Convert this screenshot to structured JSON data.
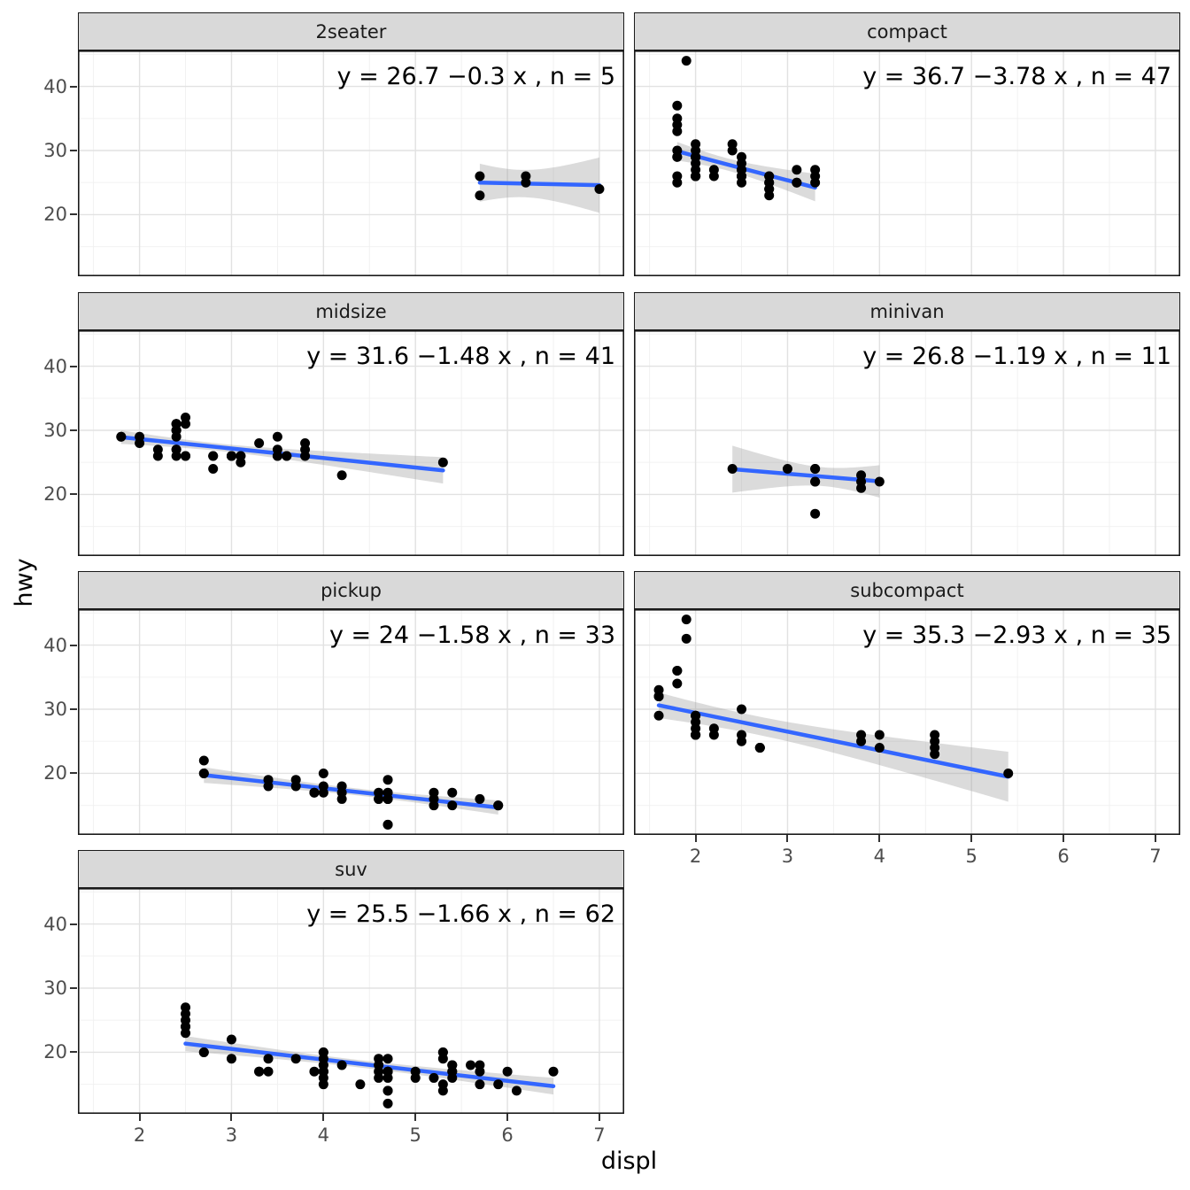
{
  "figure": {
    "background": "#ffffff"
  },
  "chart_data": {
    "type": "scatter",
    "title": "",
    "xlabel": "displ",
    "ylabel": "hwy",
    "facet_variable": "class",
    "legend": "none",
    "grid": "major+minor",
    "x_ticks": [
      2,
      3,
      4,
      5,
      6,
      7
    ],
    "y_ticks": [
      20,
      30,
      40
    ],
    "x_minor_ticks": [
      1.5,
      2.5,
      3.5,
      4.5,
      5.5,
      6.5
    ],
    "y_minor_ticks": [
      15,
      25,
      35,
      45
    ],
    "x_range": [
      1.33,
      7.27
    ],
    "y_range": [
      10.4,
      45.6
    ],
    "colors": {
      "point": "#000000",
      "smooth_line": "#3366FF",
      "confidence_band": "#999999",
      "strip_background": "#D9D9D9",
      "panel_border": "#1a1a1a",
      "grid_major": "#e2e2e2",
      "grid_minor": "#f0f0f0",
      "tick_text": "#4d4d4d"
    },
    "facets": [
      {
        "label": "2seater",
        "row": 0,
        "col": 0,
        "annotation": "y = 26.7 −0.3 x , n = 5",
        "fit": {
          "intercept": 26.7,
          "slope": -0.3,
          "n": 5
        },
        "points": [
          [
            5.7,
            26
          ],
          [
            5.7,
            23
          ],
          [
            6.2,
            26
          ],
          [
            6.2,
            25
          ],
          [
            7.0,
            24
          ]
        ]
      },
      {
        "label": "compact",
        "row": 0,
        "col": 1,
        "annotation": "y = 36.7 −3.78 x , n = 47",
        "fit": {
          "intercept": 36.7,
          "slope": -3.78,
          "n": 47
        },
        "points": [
          [
            1.8,
            29
          ],
          [
            1.8,
            29
          ],
          [
            2.0,
            31
          ],
          [
            2.0,
            30
          ],
          [
            2.8,
            26
          ],
          [
            2.8,
            26
          ],
          [
            3.1,
            27
          ],
          [
            1.8,
            26
          ],
          [
            1.8,
            25
          ],
          [
            2.0,
            28
          ],
          [
            2.0,
            27
          ],
          [
            2.8,
            25
          ],
          [
            2.8,
            25
          ],
          [
            3.1,
            25
          ],
          [
            3.1,
            25
          ],
          [
            2.2,
            26
          ],
          [
            2.2,
            27
          ],
          [
            2.5,
            26
          ],
          [
            2.5,
            27
          ],
          [
            2.5,
            26
          ],
          [
            2.5,
            25
          ],
          [
            2.5,
            27
          ],
          [
            2.5,
            26
          ],
          [
            1.8,
            30
          ],
          [
            1.8,
            33
          ],
          [
            1.8,
            34
          ],
          [
            1.8,
            35
          ],
          [
            1.8,
            37
          ],
          [
            2.0,
            29
          ],
          [
            2.0,
            26
          ],
          [
            2.0,
            29
          ],
          [
            2.0,
            26
          ],
          [
            2.8,
            24
          ],
          [
            1.9,
            44
          ],
          [
            2.0,
            29
          ],
          [
            2.0,
            26
          ],
          [
            2.0,
            29
          ],
          [
            2.0,
            26
          ],
          [
            2.5,
            29
          ],
          [
            2.5,
            28
          ],
          [
            2.8,
            24
          ],
          [
            2.8,
            23
          ],
          [
            2.4,
            30
          ],
          [
            2.4,
            31
          ],
          [
            3.3,
            25
          ],
          [
            3.3,
            26
          ],
          [
            3.3,
            27
          ]
        ]
      },
      {
        "label": "midsize",
        "row": 1,
        "col": 0,
        "annotation": "y = 31.6 −1.48 x , n = 41",
        "fit": {
          "intercept": 31.6,
          "slope": -1.48,
          "n": 41
        },
        "points": [
          [
            1.8,
            29
          ],
          [
            1.8,
            29
          ],
          [
            2.0,
            28
          ],
          [
            2.0,
            29
          ],
          [
            2.8,
            26
          ],
          [
            2.8,
            26
          ],
          [
            3.6,
            26
          ],
          [
            2.8,
            24
          ],
          [
            3.1,
            25
          ],
          [
            4.2,
            23
          ],
          [
            2.4,
            27
          ],
          [
            2.4,
            30
          ],
          [
            3.1,
            26
          ],
          [
            3.5,
            29
          ],
          [
            3.6,
            26
          ],
          [
            2.4,
            26
          ],
          [
            2.4,
            27
          ],
          [
            2.4,
            30
          ],
          [
            2.4,
            31
          ],
          [
            2.5,
            26
          ],
          [
            2.5,
            26
          ],
          [
            3.3,
            28
          ],
          [
            2.4,
            29
          ],
          [
            2.4,
            31
          ],
          [
            2.5,
            31
          ],
          [
            2.5,
            32
          ],
          [
            3.5,
            26
          ],
          [
            3.5,
            27
          ],
          [
            3.0,
            26
          ],
          [
            3.0,
            26
          ],
          [
            3.5,
            26
          ],
          [
            3.1,
            26
          ],
          [
            3.8,
            26
          ],
          [
            3.8,
            27
          ],
          [
            3.8,
            28
          ],
          [
            5.3,
            25
          ],
          [
            2.2,
            26
          ],
          [
            2.2,
            27
          ],
          [
            2.4,
            30
          ],
          [
            2.4,
            31
          ],
          [
            3.0,
            26
          ]
        ]
      },
      {
        "label": "minivan",
        "row": 1,
        "col": 1,
        "annotation": "y = 26.8 −1.19 x , n = 11",
        "fit": {
          "intercept": 26.8,
          "slope": -1.19,
          "n": 11
        },
        "points": [
          [
            2.4,
            24
          ],
          [
            3.0,
            24
          ],
          [
            3.3,
            22
          ],
          [
            3.3,
            22
          ],
          [
            3.3,
            24
          ],
          [
            3.3,
            24
          ],
          [
            3.3,
            17
          ],
          [
            3.8,
            22
          ],
          [
            3.8,
            21
          ],
          [
            3.8,
            23
          ],
          [
            4.0,
            22
          ]
        ]
      },
      {
        "label": "pickup",
        "row": 2,
        "col": 0,
        "annotation": "y = 24 −1.58 x , n = 33",
        "fit": {
          "intercept": 24,
          "slope": -1.58,
          "n": 33
        },
        "points": [
          [
            2.7,
            20
          ],
          [
            2.7,
            22
          ],
          [
            2.7,
            20
          ],
          [
            3.4,
            19
          ],
          [
            3.4,
            18
          ],
          [
            3.7,
            19
          ],
          [
            3.7,
            18
          ],
          [
            3.9,
            17
          ],
          [
            3.9,
            17
          ],
          [
            4.0,
            20
          ],
          [
            4.0,
            18
          ],
          [
            4.0,
            17
          ],
          [
            4.2,
            17
          ],
          [
            4.2,
            16
          ],
          [
            4.2,
            18
          ],
          [
            4.6,
            16
          ],
          [
            4.6,
            16
          ],
          [
            4.6,
            17
          ],
          [
            4.7,
            16
          ],
          [
            4.7,
            16
          ],
          [
            4.7,
            12
          ],
          [
            4.7,
            16
          ],
          [
            4.7,
            12
          ],
          [
            4.7,
            19
          ],
          [
            4.7,
            17
          ],
          [
            5.2,
            17
          ],
          [
            5.2,
            15
          ],
          [
            5.2,
            16
          ],
          [
            5.4,
            15
          ],
          [
            5.4,
            17
          ],
          [
            5.7,
            16
          ],
          [
            5.9,
            15
          ],
          [
            5.9,
            15
          ]
        ]
      },
      {
        "label": "subcompact",
        "row": 2,
        "col": 1,
        "annotation": "y = 35.3 −2.93 x , n = 35",
        "fit": {
          "intercept": 35.3,
          "slope": -2.93,
          "n": 35
        },
        "points": [
          [
            1.6,
            33
          ],
          [
            1.6,
            32
          ],
          [
            1.6,
            32
          ],
          [
            1.6,
            29
          ],
          [
            1.6,
            32
          ],
          [
            1.8,
            34
          ],
          [
            1.8,
            36
          ],
          [
            1.8,
            36
          ],
          [
            2.0,
            29
          ],
          [
            1.9,
            44
          ],
          [
            1.9,
            41
          ],
          [
            2.0,
            29
          ],
          [
            2.0,
            26
          ],
          [
            2.0,
            28
          ],
          [
            2.5,
            30
          ],
          [
            2.0,
            26
          ],
          [
            2.0,
            27
          ],
          [
            2.0,
            26
          ],
          [
            2.0,
            26
          ],
          [
            2.7,
            24
          ],
          [
            2.7,
            24
          ],
          [
            2.7,
            24
          ],
          [
            3.8,
            26
          ],
          [
            3.8,
            25
          ],
          [
            4.0,
            24
          ],
          [
            4.0,
            26
          ],
          [
            4.6,
            24
          ],
          [
            4.6,
            25
          ],
          [
            4.6,
            26
          ],
          [
            4.6,
            23
          ],
          [
            5.4,
            20
          ],
          [
            2.2,
            26
          ],
          [
            2.2,
            27
          ],
          [
            2.5,
            26
          ],
          [
            2.5,
            25
          ]
        ]
      },
      {
        "label": "suv",
        "row": 3,
        "col": 0,
        "annotation": "y = 25.5 −1.66 x , n = 62",
        "fit": {
          "intercept": 25.5,
          "slope": -1.66,
          "n": 62
        },
        "points": [
          [
            5.3,
            20
          ],
          [
            5.3,
            15
          ],
          [
            5.3,
            20
          ],
          [
            5.7,
            17
          ],
          [
            6.0,
            17
          ],
          [
            5.3,
            14
          ],
          [
            5.3,
            19
          ],
          [
            5.7,
            15
          ],
          [
            6.5,
            17
          ],
          [
            3.9,
            17
          ],
          [
            4.7,
            17
          ],
          [
            4.7,
            12
          ],
          [
            4.7,
            17
          ],
          [
            4.7,
            16
          ],
          [
            5.2,
            16
          ],
          [
            5.9,
            15
          ],
          [
            4.6,
            17
          ],
          [
            5.4,
            17
          ],
          [
            5.4,
            18
          ],
          [
            4.0,
            17
          ],
          [
            4.0,
            17
          ],
          [
            4.0,
            16
          ],
          [
            4.0,
            18
          ],
          [
            4.6,
            18
          ],
          [
            5.0,
            16
          ],
          [
            3.0,
            22
          ],
          [
            3.0,
            19
          ],
          [
            3.7,
            19
          ],
          [
            4.0,
            17
          ],
          [
            4.0,
            20
          ],
          [
            4.7,
            19
          ],
          [
            4.7,
            14
          ],
          [
            6.1,
            14
          ],
          [
            4.0,
            15
          ],
          [
            4.2,
            18
          ],
          [
            4.4,
            15
          ],
          [
            4.6,
            16
          ],
          [
            5.4,
            17
          ],
          [
            5.4,
            16
          ],
          [
            5.4,
            18
          ],
          [
            4.0,
            17
          ],
          [
            4.0,
            19
          ],
          [
            4.6,
            19
          ],
          [
            5.0,
            17
          ],
          [
            3.3,
            17
          ],
          [
            3.3,
            17
          ],
          [
            4.0,
            18
          ],
          [
            5.6,
            18
          ],
          [
            2.5,
            26
          ],
          [
            2.5,
            24
          ],
          [
            2.5,
            27
          ],
          [
            2.5,
            25
          ],
          [
            2.5,
            23
          ],
          [
            2.5,
            24
          ],
          [
            2.7,
            20
          ],
          [
            2.7,
            20
          ],
          [
            3.4,
            19
          ],
          [
            3.4,
            17
          ],
          [
            4.0,
            20
          ],
          [
            4.7,
            17
          ],
          [
            4.7,
            14
          ],
          [
            5.7,
            18
          ]
        ]
      }
    ]
  }
}
